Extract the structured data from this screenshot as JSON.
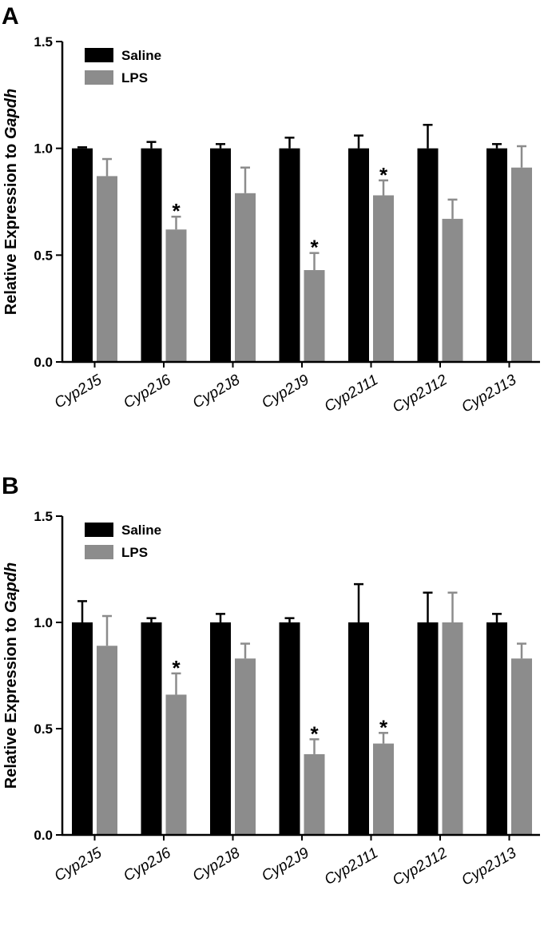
{
  "chart_data": [
    {
      "panel": "A",
      "type": "bar",
      "ylabel_prefix": "Relative Expression to ",
      "ylabel_gene": "Gapdh",
      "ylim": [
        0,
        1.5
      ],
      "yticks": [
        "0.0",
        "0.5",
        "1.0",
        "1.5"
      ],
      "ytick_values": [
        0,
        0.5,
        1.0,
        1.5
      ],
      "categories": [
        "Cyp2J5",
        "Cyp2J6",
        "Cyp2J8",
        "Cyp2J9",
        "Cyp2J11",
        "Cyp2J12",
        "Cyp2J13"
      ],
      "legend_position": "top-left",
      "series": [
        {
          "name": "Saline",
          "color": "#000000",
          "values": [
            1.0,
            1.0,
            1.0,
            1.0,
            1.0,
            1.0,
            1.0
          ],
          "errors": [
            0.005,
            0.03,
            0.02,
            0.05,
            0.06,
            0.11,
            0.02
          ]
        },
        {
          "name": "LPS",
          "color": "#8c8c8c",
          "values": [
            0.87,
            0.62,
            0.79,
            0.43,
            0.78,
            0.67,
            0.91
          ],
          "errors": [
            0.08,
            0.06,
            0.12,
            0.08,
            0.07,
            0.09,
            0.1
          ]
        }
      ],
      "significance": [
        {
          "category": "Cyp2J6",
          "series": "LPS",
          "label": "*"
        },
        {
          "category": "Cyp2J9",
          "series": "LPS",
          "label": "*"
        },
        {
          "category": "Cyp2J11",
          "series": "LPS",
          "label": "*"
        }
      ]
    },
    {
      "panel": "B",
      "type": "bar",
      "ylabel_prefix": "Relative Expression to ",
      "ylabel_gene": "Gapdh",
      "ylim": [
        0,
        1.5
      ],
      "yticks": [
        "0.0",
        "0.5",
        "1.0",
        "1.5"
      ],
      "ytick_values": [
        0,
        0.5,
        1.0,
        1.5
      ],
      "categories": [
        "Cyp2J5",
        "Cyp2J6",
        "Cyp2J8",
        "Cyp2J9",
        "Cyp2J11",
        "Cyp2J12",
        "Cyp2J13"
      ],
      "legend_position": "top-left",
      "series": [
        {
          "name": "Saline",
          "color": "#000000",
          "values": [
            1.0,
            1.0,
            1.0,
            1.0,
            1.0,
            1.0,
            1.0
          ],
          "errors": [
            0.1,
            0.02,
            0.04,
            0.02,
            0.18,
            0.14,
            0.04
          ]
        },
        {
          "name": "LPS",
          "color": "#8c8c8c",
          "values": [
            0.89,
            0.66,
            0.83,
            0.38,
            0.43,
            1.0,
            0.83
          ],
          "errors": [
            0.14,
            0.1,
            0.07,
            0.07,
            0.05,
            0.14,
            0.07
          ]
        }
      ],
      "significance": [
        {
          "category": "Cyp2J6",
          "series": "LPS",
          "label": "*"
        },
        {
          "category": "Cyp2J9",
          "series": "LPS",
          "label": "*"
        },
        {
          "category": "Cyp2J11",
          "series": "LPS",
          "label": "*"
        }
      ]
    }
  ]
}
